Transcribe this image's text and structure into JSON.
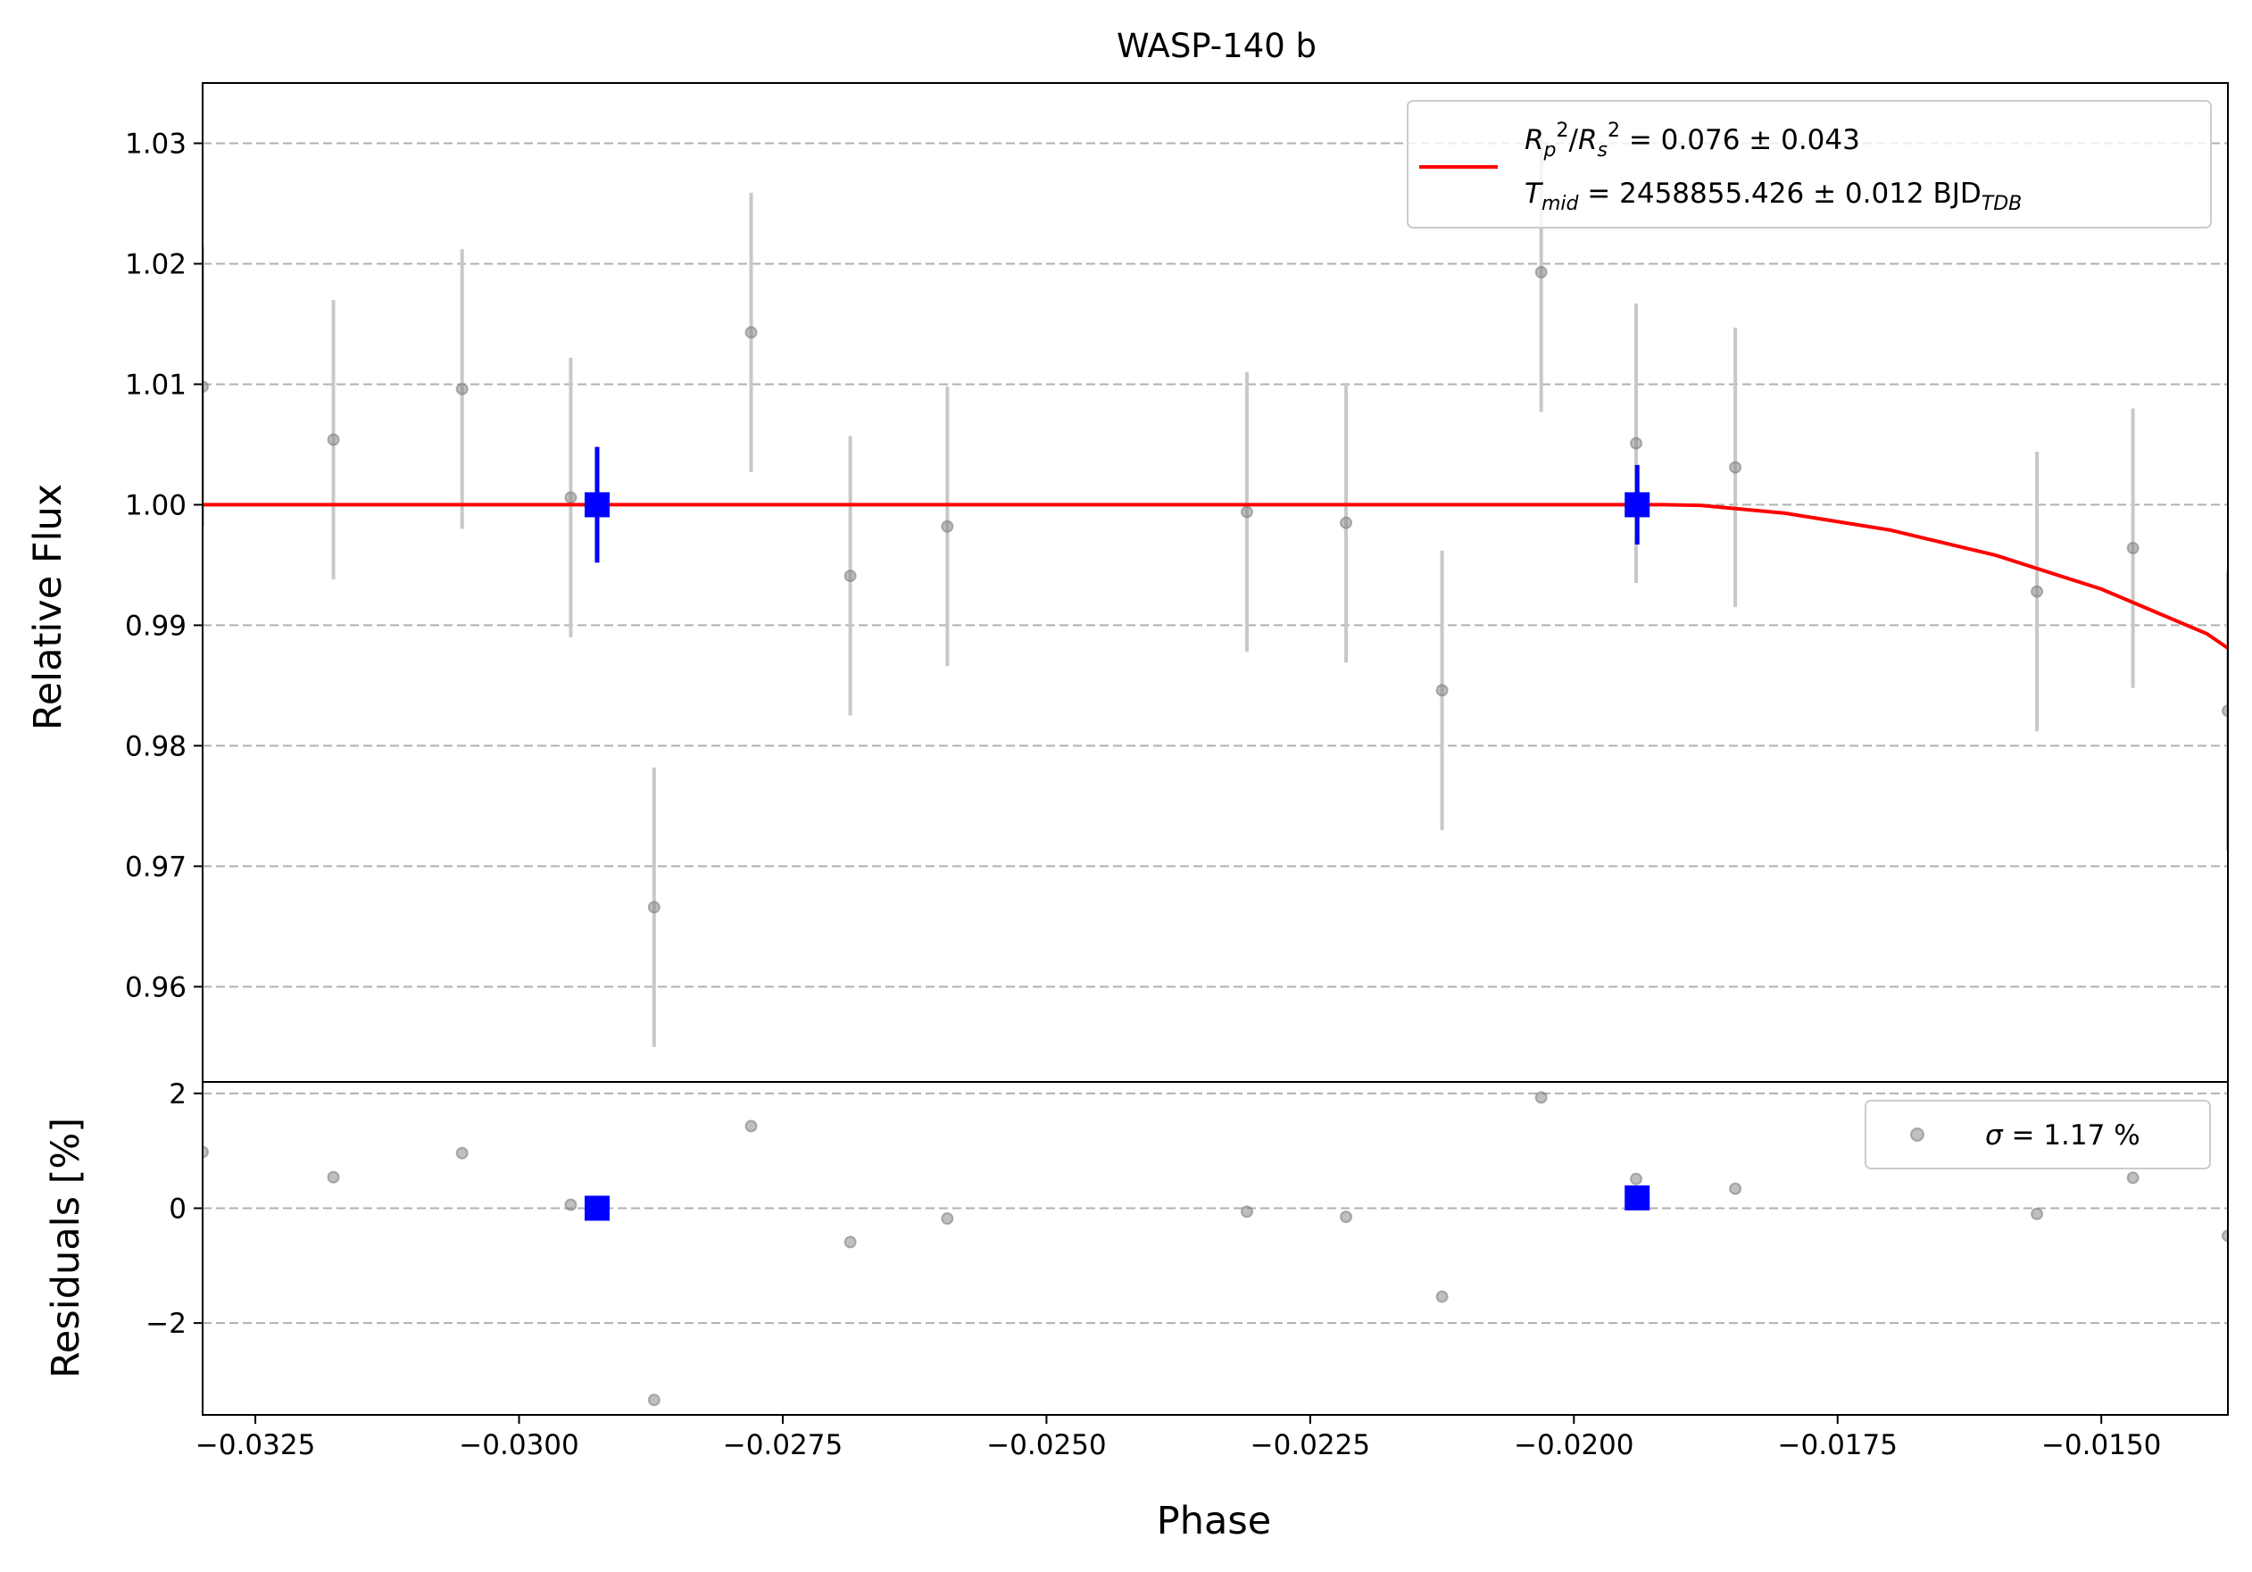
{
  "chart_data": {
    "type": "scatter",
    "title": "WASP-140 b",
    "xlabel": "Phase",
    "colors": {
      "data": "#808080",
      "errorbar": "#c8c8c8",
      "binned": "#0000ff",
      "model": "#ff0000",
      "grid": "#b0b0b0"
    },
    "main_panel": {
      "ylabel": "Relative Flux",
      "xlim": [
        -0.033,
        -0.0138
      ],
      "ylim": [
        0.9521,
        1.035
      ],
      "yticks": [
        0.96,
        0.97,
        0.98,
        0.99,
        1.0,
        1.01,
        1.02,
        1.03
      ],
      "ytick_labels": [
        "0.96",
        "0.97",
        "0.98",
        "0.99",
        "1.00",
        "1.01",
        "1.02",
        "1.03"
      ],
      "grid": "y-dashed",
      "legend_placement": "upper right",
      "legend": {
        "line1_parts": [
          "R",
          "p",
          "2",
          "/",
          "R",
          "s",
          "2",
          " = 0.076 ± 0.043"
        ],
        "line2_parts": [
          "T",
          "mid",
          " = 2458855.426 ± 0.012 BJD",
          "TDB"
        ]
      },
      "series": [
        {
          "kind": "data",
          "x": [
            -0.033,
            -0.03176,
            -0.03054,
            -0.02951,
            -0.02872,
            -0.0278,
            -0.02686,
            -0.02594,
            -0.0231,
            -0.02216,
            -0.02125,
            -0.02031,
            -0.01941,
            -0.01847,
            -0.01561,
            -0.0147,
            -0.0138
          ],
          "y": [
            1.0098,
            1.0054,
            1.0096,
            1.0006,
            0.9666,
            1.0143,
            0.9941,
            0.9982,
            0.9994,
            0.9985,
            0.9846,
            1.0193,
            1.0051,
            1.0031,
            0.9928,
            0.9964,
            0.9829
          ],
          "yerr": [
            0.0116,
            0.0116,
            0.0116,
            0.0116,
            0.0116,
            0.0116,
            0.0116,
            0.0116,
            0.0116,
            0.0116,
            0.0116,
            0.0116,
            0.0116,
            0.0116,
            0.0116,
            0.0116,
            0.0116
          ]
        },
        {
          "kind": "binned",
          "x": [
            -0.02926,
            -0.0194
          ],
          "y": [
            1.0,
            1.0
          ],
          "yerr": [
            0.0048,
            0.0033
          ]
        },
        {
          "kind": "model",
          "x": [
            -0.033,
            -0.025,
            -0.02,
            -0.01915,
            -0.0188,
            -0.018,
            -0.017,
            -0.016,
            -0.015,
            -0.014,
            -0.0138
          ],
          "y": [
            1.0,
            1.0,
            1.0,
            1.0,
            0.99995,
            0.9993,
            0.9979,
            0.9958,
            0.993,
            0.9893,
            0.9881
          ]
        }
      ]
    },
    "residual_panel": {
      "ylabel": "Residuals [%]",
      "xlim": [
        -0.033,
        -0.0138
      ],
      "ylim": [
        -3.6,
        2.2
      ],
      "yticks": [
        -2,
        0,
        2
      ],
      "ytick_labels": [
        "−2",
        "0",
        "2"
      ],
      "grid": "y-dashed",
      "legend_placement": "upper right",
      "legend": {
        "label_symbol": "σ",
        "label_text": " = 1.17 %"
      },
      "series": [
        {
          "kind": "data",
          "x": [
            -0.033,
            -0.03176,
            -0.03054,
            -0.02951,
            -0.02872,
            -0.0278,
            -0.02686,
            -0.02594,
            -0.0231,
            -0.02216,
            -0.02125,
            -0.02031,
            -0.01941,
            -0.01847,
            -0.01561,
            -0.0147,
            -0.0138
          ],
          "y": [
            0.98,
            0.54,
            0.96,
            0.06,
            -3.34,
            1.43,
            -0.59,
            -0.18,
            -0.06,
            -0.15,
            -1.54,
            1.93,
            0.51,
            0.34,
            -0.1,
            0.53,
            -0.48
          ]
        },
        {
          "kind": "binned",
          "x": [
            -0.02926,
            -0.0194
          ],
          "y": [
            0.0,
            0.18
          ]
        }
      ]
    },
    "xticks": [
      -0.0325,
      -0.03,
      -0.0275,
      -0.025,
      -0.0225,
      -0.02,
      -0.0175,
      -0.015
    ],
    "xtick_labels": [
      "−0.0325",
      "−0.0300",
      "−0.0275",
      "−0.0250",
      "−0.0225",
      "−0.0200",
      "−0.0175",
      "−0.0150"
    ]
  }
}
